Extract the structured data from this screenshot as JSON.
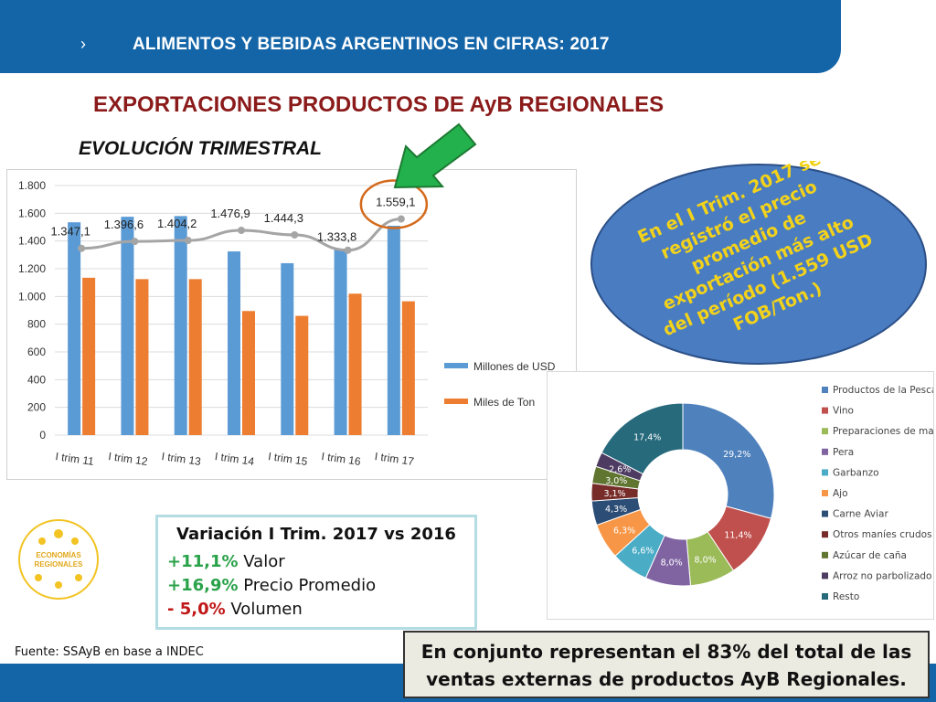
{
  "header": {
    "title": "ALIMENTOS Y BEBIDAS ARGENTINOS EN CIFRAS: 2017",
    "chevron": "›"
  },
  "main_title": "EXPORTACIONES PRODUCTOS DE AyB REGIONALES",
  "sub_title": "EVOLUCIÓN TRIMESTRAL",
  "callout_text": [
    "En el I Trim. 2017 se",
    "registró el precio",
    "promedio de",
    "exportación más alto",
    "del período (1.559 USD",
    "FOB/Ton.)"
  ],
  "variation": {
    "title": "Variación I Trim. 2017 vs 2016",
    "lines": [
      {
        "value": "+11,1%",
        "label": " Valor",
        "tone": "green"
      },
      {
        "value": "+16,9%",
        "label": " Precio Promedio",
        "tone": "green"
      },
      {
        "value": "- 5,0%",
        "label": " Volumen",
        "tone": "red"
      }
    ]
  },
  "logo": {
    "line1": "ECONOMÍAS",
    "line2": "REGIONALES"
  },
  "source": "Fuente: SSAyB en base a INDEC",
  "summary": {
    "line1": "En conjunto representan el 83% del total de las",
    "line2": "ventas externas de productos AyB Regionales."
  },
  "colors": {
    "header": "#1465a8",
    "title_red": "#8b1a1a",
    "bar_usd": "#5b9bd5",
    "bar_ton": "#ed7d31",
    "price_line": "#a5a5a5",
    "highlight_circle": "#d46a1c",
    "arrow": "#22b14c",
    "ellipse": "#4a7cc2",
    "callout_text": "#f2d21a"
  },
  "chart_data": [
    {
      "type": "bar",
      "categories": [
        "I trim 11",
        "I trim 12",
        "I trim 13",
        "I trim 14",
        "I trim 15",
        "I trim 16",
        "I trim 17"
      ],
      "series": [
        {
          "name": "Millones de USD",
          "values": [
            1535,
            1575,
            1580,
            1325,
            1240,
            1340,
            1510
          ]
        },
        {
          "name": "Miles de Ton",
          "values": [
            1135,
            1125,
            1125,
            895,
            860,
            1020,
            965
          ]
        }
      ],
      "line_series": {
        "values": [
          1347.1,
          1396.6,
          1404.2,
          1476.9,
          1444.3,
          1333.8,
          1559.1
        ],
        "labels": [
          "1.347,1",
          "1.396,6",
          "1.404,2",
          "1.476,9",
          "1.444,3",
          "1.333,8",
          "1.559,1"
        ]
      },
      "ylim": [
        0,
        1800
      ],
      "yticks": [
        0,
        200,
        400,
        600,
        800,
        1000,
        1200,
        1400,
        1600,
        1800
      ],
      "ytick_labels": [
        "0",
        "200",
        "400",
        "600",
        "800",
        "1.000",
        "1.200",
        "1.400",
        "1.600",
        "1.800"
      ],
      "grid": true,
      "legend_position": "right"
    },
    {
      "type": "pie",
      "categories": [
        "Productos de la Pesca",
        "Vino",
        "Preparaciones de maní",
        "Pera",
        "Garbanzo",
        "Ajo",
        "Carne Aviar",
        "Otros maníes crudos",
        "Azúcar de caña",
        "Arroz no parbolizado",
        "Resto"
      ],
      "values": [
        29.2,
        11.4,
        8.0,
        8.0,
        6.6,
        6.3,
        4.3,
        3.1,
        3.0,
        2.6,
        17.4
      ],
      "labels": [
        "29,2%",
        "11,4%",
        "8,0%",
        "8,0%",
        "6,6%",
        "6,3%",
        "4,3%",
        "3,1%",
        "3,0%",
        "2,6%",
        "17,4%"
      ],
      "colors": [
        "#4f81bd",
        "#c0504d",
        "#9bbb59",
        "#8064a2",
        "#4bacc6",
        "#f79646",
        "#2c4d75",
        "#772c2a",
        "#5f7530",
        "#4d3b62",
        "#276a7c"
      ],
      "legend_position": "right"
    }
  ]
}
